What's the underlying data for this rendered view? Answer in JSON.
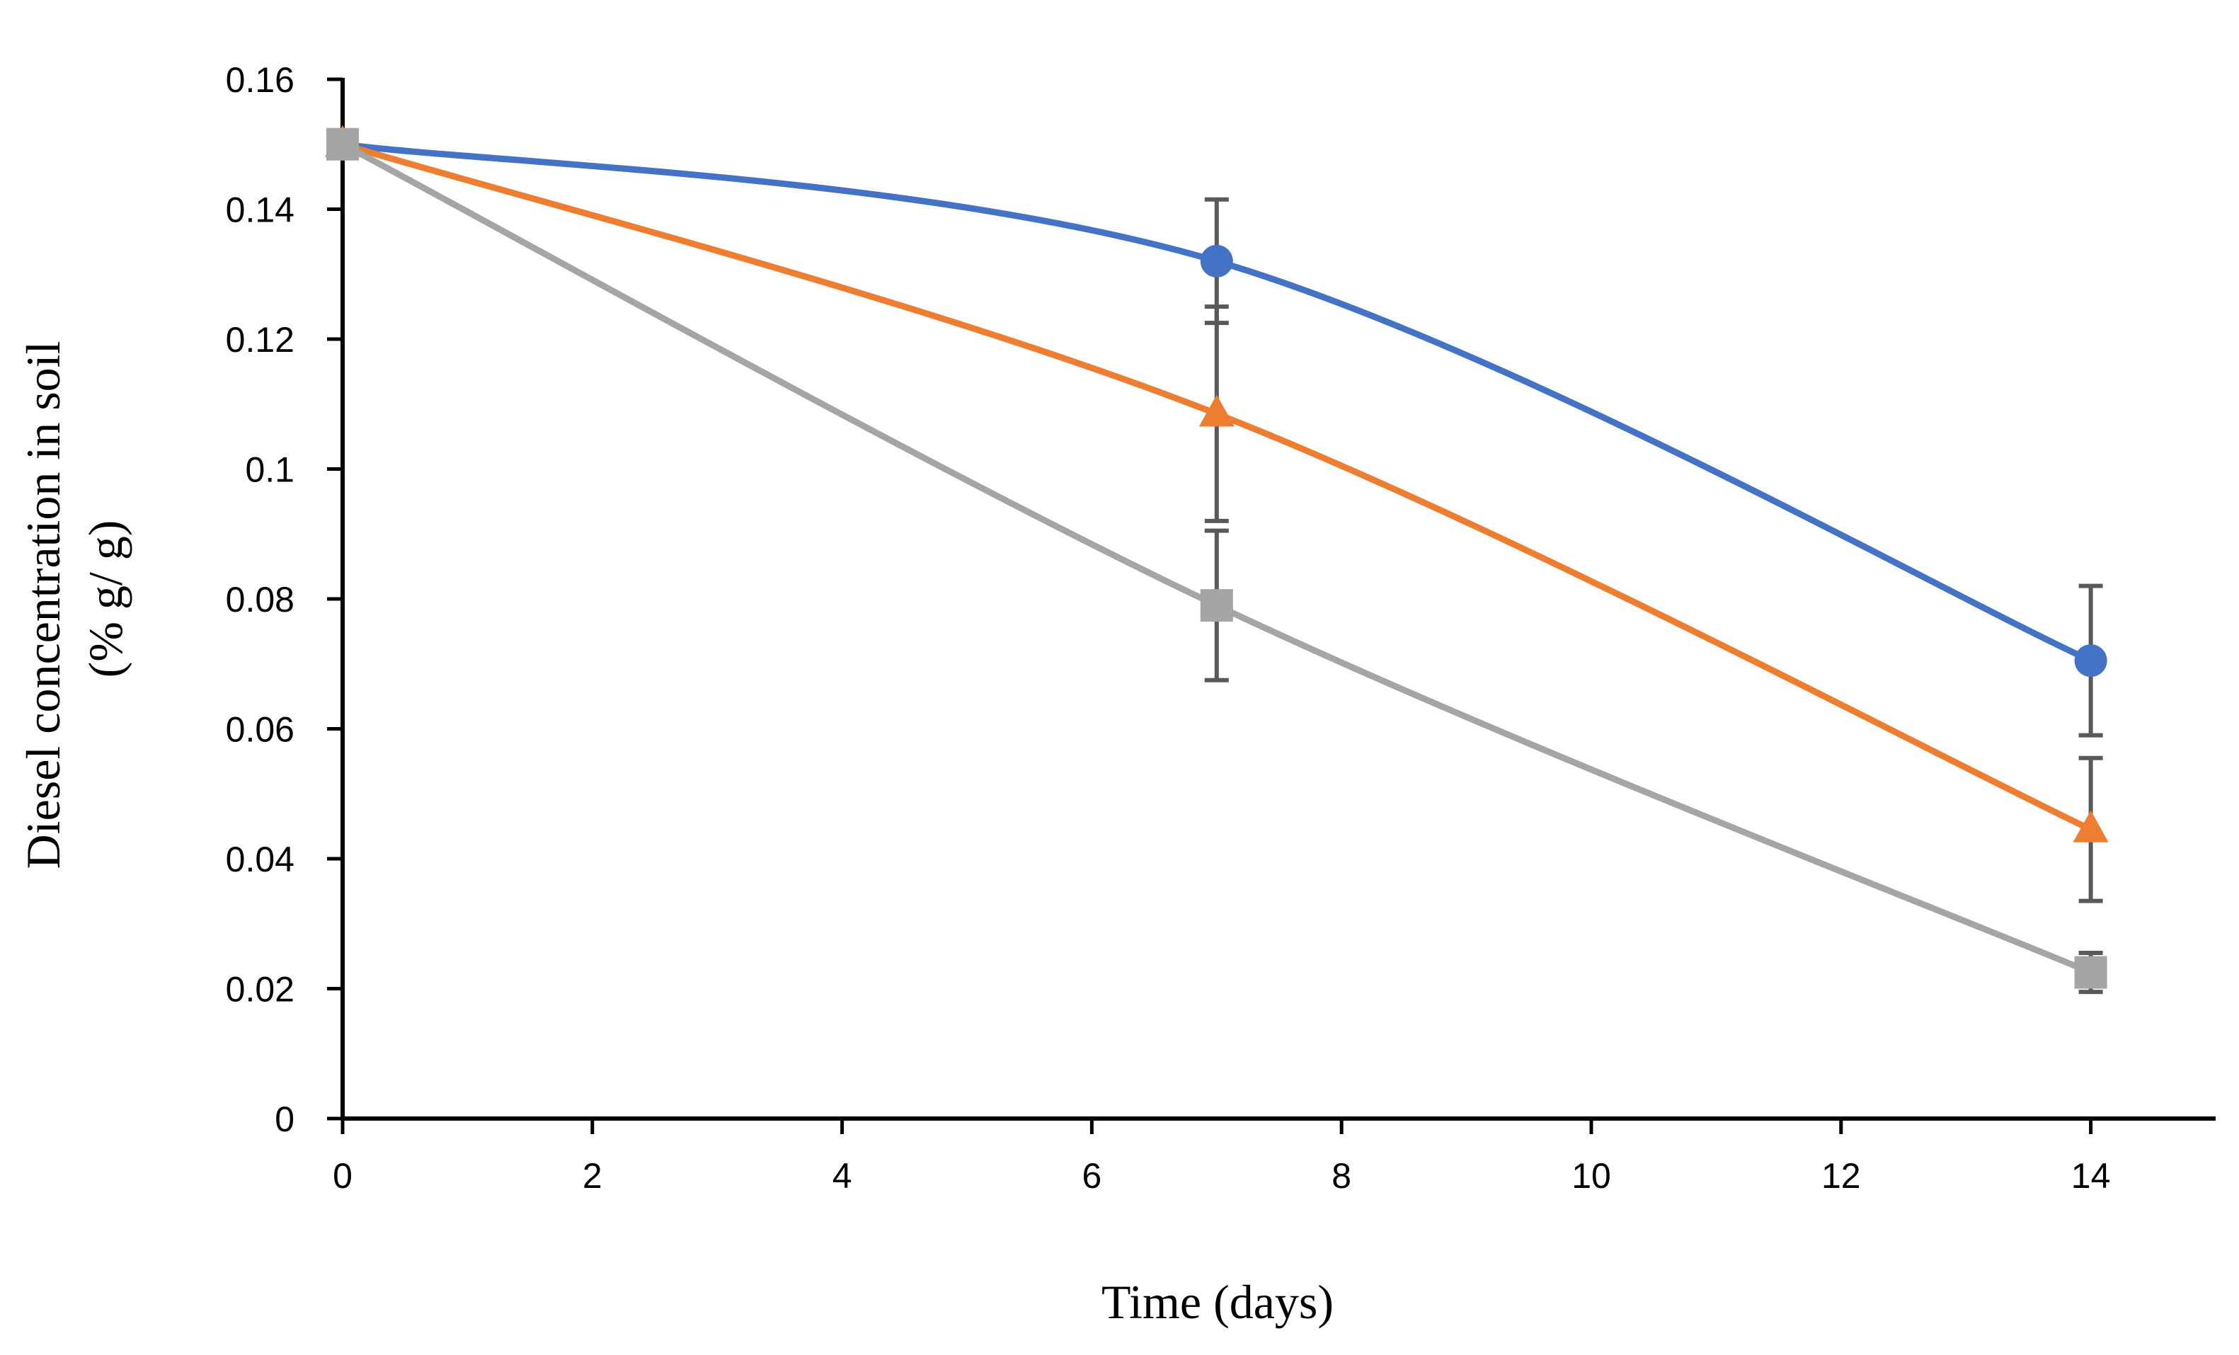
{
  "chart_data": {
    "type": "line",
    "title": "",
    "xlabel": "Time (days)",
    "ylabel": [
      "Diesel concentration in soil",
      "(% g/ g)"
    ],
    "xlim": [
      0,
      15
    ],
    "ylim": [
      0,
      0.16
    ],
    "xticks": [
      0,
      2,
      4,
      6,
      8,
      10,
      12,
      14
    ],
    "xtick_labels": [
      "0",
      "2",
      "4",
      "6",
      "8",
      "10",
      "12",
      "14"
    ],
    "yticks": [
      0,
      0.02,
      0.04,
      0.06,
      0.08,
      0.1,
      0.12,
      0.14,
      0.16
    ],
    "ytick_labels": [
      "0",
      "0.02",
      "0.04",
      "0.06",
      "0.08",
      "0.1",
      "0.12",
      "0.14",
      "0.16"
    ],
    "grid": false,
    "legend": "none",
    "x": [
      0,
      7,
      14
    ],
    "series": [
      {
        "name": "series-blue",
        "color": "#4472C4",
        "marker": "circle",
        "values": [
          0.15,
          0.132,
          0.0705
        ],
        "errors": [
          0,
          0.0095,
          0.0115
        ]
      },
      {
        "name": "series-orange",
        "color": "#ED7D31",
        "marker": "triangle",
        "values": [
          0.15,
          0.1085,
          0.0445
        ],
        "errors": [
          0,
          0.0165,
          0.011
        ]
      },
      {
        "name": "series-gray",
        "color": "#A5A5A5",
        "marker": "square",
        "values": [
          0.15,
          0.079,
          0.0225
        ],
        "errors": [
          0,
          0.0115,
          0.003
        ]
      }
    ],
    "error_bar_color": "#595959"
  }
}
